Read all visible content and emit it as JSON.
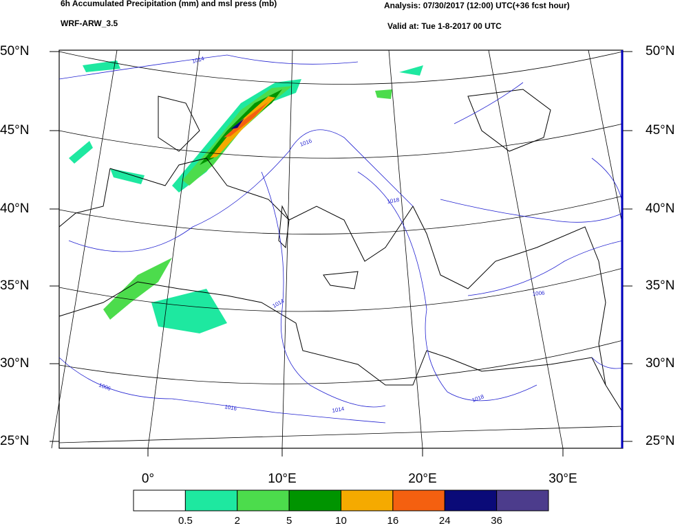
{
  "header": {
    "title": "6h Accumulated Precipitation (mm) and msl press (mb)",
    "model": "WRF-ARW_3.5",
    "analysis": "Analysis: 07/30/2017 (12:00) UTC(+36 fcst hour)",
    "valid": "Valid at: Tue 1-8-2017 00 UTC"
  },
  "lat_labels": [
    "50°N",
    "45°N",
    "40°N",
    "35°N",
    "30°N",
    "25°N"
  ],
  "lon_labels": [
    "0°",
    "10°E",
    "20°E",
    "30°E"
  ],
  "isobar_labels": [
    "1014",
    "1016",
    "1018",
    "1014",
    "1014",
    "1016",
    "1006",
    "1018",
    "1006"
  ],
  "colorbar": {
    "colors": [
      "#ffffff",
      "#1ee8a0",
      "#4cdc4c",
      "#009400",
      "#f5aa00",
      "#f46010",
      "#0a0a78",
      "#4c3c8c"
    ],
    "labels": [
      "0.5",
      "2",
      "5",
      "10",
      "16",
      "24",
      "36"
    ]
  }
}
